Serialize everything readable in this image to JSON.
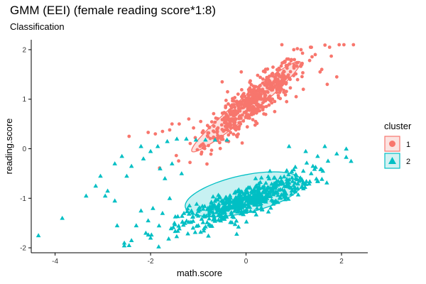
{
  "chart_data": {
    "type": "scatter",
    "title": "GMM (EEI) (female reading score*1:8)",
    "subtitle": "Classification",
    "xlabel": "math.score",
    "ylabel": "reading.score",
    "xlim": [
      -4.5,
      2.55
    ],
    "ylim": [
      -2.1,
      2.2
    ],
    "x_ticks": [
      -4,
      -2,
      0,
      2
    ],
    "y_ticks": [
      -2,
      -1,
      0,
      1,
      2
    ],
    "grid": false,
    "legend": {
      "title": "cluster",
      "position": "right",
      "entries": [
        {
          "label": "1",
          "color": "#F8766D",
          "shape": "circle"
        },
        {
          "label": "2",
          "color": "#00BFC4",
          "shape": "triangle"
        }
      ]
    },
    "series": [
      {
        "label": "1",
        "shape": "circle",
        "color": "#F8766D",
        "distribution": {
          "n": 520,
          "mean": [
            0.15,
            0.95
          ],
          "major_sd": 0.68,
          "minor_sd": 0.15,
          "angle_deg": 38.5
        },
        "ellipse": {
          "center": [
            0.0,
            0.85
          ],
          "semi_major": 1.45,
          "semi_minor": 0.18,
          "angle_deg": 38.5
        },
        "points": [
          {
            "x": 0.75,
            "y": 2.1
          },
          {
            "x": 1.0,
            "y": 2.0
          },
          {
            "x": 1.35,
            "y": 2.05
          },
          {
            "x": 1.45,
            "y": 1.9
          },
          {
            "x": 1.75,
            "y": 2.05
          },
          {
            "x": 1.95,
            "y": 2.1
          },
          {
            "x": 2.05,
            "y": 2.1
          },
          {
            "x": 2.25,
            "y": 2.1
          },
          {
            "x": 1.15,
            "y": 2.0
          },
          {
            "x": 0.95,
            "y": 1.8
          },
          {
            "x": 0.7,
            "y": 1.6
          },
          {
            "x": 0.4,
            "y": 1.55
          },
          {
            "x": -1.75,
            "y": 0.35
          },
          {
            "x": -1.9,
            "y": 0.3
          },
          {
            "x": -1.6,
            "y": 0.38
          },
          {
            "x": -1.4,
            "y": 0.5
          },
          {
            "x": -1.55,
            "y": 0.5
          },
          {
            "x": -1.2,
            "y": 0.6
          },
          {
            "x": -0.95,
            "y": 0.55
          },
          {
            "x": -0.8,
            "y": 0.32
          },
          {
            "x": -2.05,
            "y": 0.33
          },
          {
            "x": -1.1,
            "y": 0.42
          },
          {
            "x": -0.6,
            "y": 0.35
          },
          {
            "x": -0.35,
            "y": 0.45
          },
          {
            "x": 1.9,
            "y": 1.45
          },
          {
            "x": 1.7,
            "y": 1.3
          },
          {
            "x": 1.55,
            "y": 1.55
          },
          {
            "x": 1.2,
            "y": 1.2
          },
          {
            "x": 0.85,
            "y": 0.95
          },
          {
            "x": 1.05,
            "y": 1.05
          },
          {
            "x": 0.6,
            "y": 0.75
          },
          {
            "x": 0.2,
            "y": 0.55
          },
          {
            "x": -0.15,
            "y": 0.4
          },
          {
            "x": -2.45,
            "y": 0.25
          },
          {
            "x": -0.5,
            "y": 1.35
          },
          {
            "x": -0.1,
            "y": 1.55
          }
        ]
      },
      {
        "label": "2",
        "shape": "triangle",
        "color": "#00BFC4",
        "distribution": {
          "n": 560,
          "mean": [
            0.0,
            -1.05
          ],
          "major_sd": 0.72,
          "minor_sd": 0.14,
          "angle_deg": 20
        },
        "ellipse": {
          "center": [
            -0.05,
            -0.92
          ],
          "semi_major": 1.25,
          "semi_minor": 0.38,
          "angle_deg": 12
        },
        "points": [
          {
            "x": -4.35,
            "y": -1.75
          },
          {
            "x": -3.85,
            "y": -1.4
          },
          {
            "x": -3.35,
            "y": -0.95
          },
          {
            "x": -3.15,
            "y": -0.75
          },
          {
            "x": -3.05,
            "y": -0.55
          },
          {
            "x": -2.95,
            "y": -0.95
          },
          {
            "x": -2.9,
            "y": -0.85
          },
          {
            "x": -2.75,
            "y": -1.05
          },
          {
            "x": -2.7,
            "y": -1.55
          },
          {
            "x": -2.55,
            "y": -1.9
          },
          {
            "x": -2.45,
            "y": -1.95
          },
          {
            "x": -2.4,
            "y": -1.85
          },
          {
            "x": -2.3,
            "y": -1.55
          },
          {
            "x": -2.2,
            "y": -1.25
          },
          {
            "x": -2.1,
            "y": -1.7
          },
          {
            "x": -2.0,
            "y": -1.8
          },
          {
            "x": -2.05,
            "y": -1.45
          },
          {
            "x": -1.95,
            "y": -1.2
          },
          {
            "x": -2.4,
            "y": -0.35
          },
          {
            "x": -2.15,
            "y": -0.2
          },
          {
            "x": -2.0,
            "y": -0.05
          },
          {
            "x": -1.85,
            "y": 0.05
          },
          {
            "x": -1.65,
            "y": 0.15
          },
          {
            "x": -1.45,
            "y": 0.2
          },
          {
            "x": -1.25,
            "y": 0.2
          },
          {
            "x": -1.05,
            "y": 0.18
          },
          {
            "x": -0.85,
            "y": 0.18
          },
          {
            "x": -0.65,
            "y": 0.18
          },
          {
            "x": -0.4,
            "y": 0.18
          },
          {
            "x": -2.2,
            "y": 0.05
          },
          {
            "x": -2.6,
            "y": -0.15
          },
          {
            "x": -2.75,
            "y": -0.3
          },
          {
            "x": -2.5,
            "y": -0.55
          },
          {
            "x": -1.8,
            "y": -0.4
          },
          {
            "x": -1.7,
            "y": -0.6
          },
          {
            "x": -1.55,
            "y": -0.3
          },
          {
            "x": -1.35,
            "y": -0.5
          },
          {
            "x": -1.6,
            "y": -1.0
          },
          {
            "x": -1.75,
            "y": -1.3
          },
          {
            "x": -1.5,
            "y": -1.5
          },
          {
            "x": -1.3,
            "y": -1.3
          },
          {
            "x": -1.0,
            "y": -1.55
          },
          {
            "x": 0.9,
            "y": 0.05
          },
          {
            "x": 1.25,
            "y": -0.05
          },
          {
            "x": 1.5,
            "y": -0.15
          },
          {
            "x": 1.65,
            "y": 0.05
          },
          {
            "x": 1.9,
            "y": -0.1
          },
          {
            "x": 2.1,
            "y": 0.0
          },
          {
            "x": 2.2,
            "y": -0.25
          },
          {
            "x": 1.4,
            "y": -0.35
          },
          {
            "x": 0.5,
            "y": -0.45
          },
          {
            "x": 0.2,
            "y": -0.6
          }
        ]
      }
    ]
  }
}
